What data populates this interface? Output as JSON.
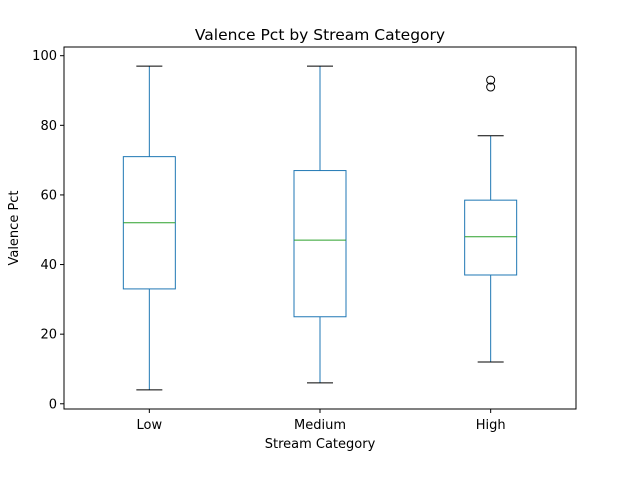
{
  "chart_data": {
    "type": "box",
    "title": "Valence Pct by Stream Category",
    "xlabel": "Stream Category",
    "ylabel": "Valence Pct",
    "categories": [
      "Low",
      "Medium",
      "High"
    ],
    "ylim": [
      -1.5,
      102.5
    ],
    "yticks": [
      "0",
      "20",
      "40",
      "60",
      "80",
      "100"
    ],
    "grid": false,
    "boxes": [
      {
        "category": "Low",
        "whisker_low": 4,
        "q1": 33,
        "median": 52,
        "q3": 71,
        "whisker_high": 97,
        "outliers": []
      },
      {
        "category": "Medium",
        "whisker_low": 6,
        "q1": 25,
        "median": 47,
        "q3": 67,
        "whisker_high": 97,
        "outliers": []
      },
      {
        "category": "High",
        "whisker_low": 12,
        "q1": 37,
        "median": 48,
        "q3": 58.5,
        "whisker_high": 77,
        "outliers": [
          91,
          93
        ]
      }
    ],
    "colors": {
      "box": "#1f77b4",
      "median": "#2ca02c",
      "cap": "#000000",
      "outlier": "#000000"
    }
  }
}
